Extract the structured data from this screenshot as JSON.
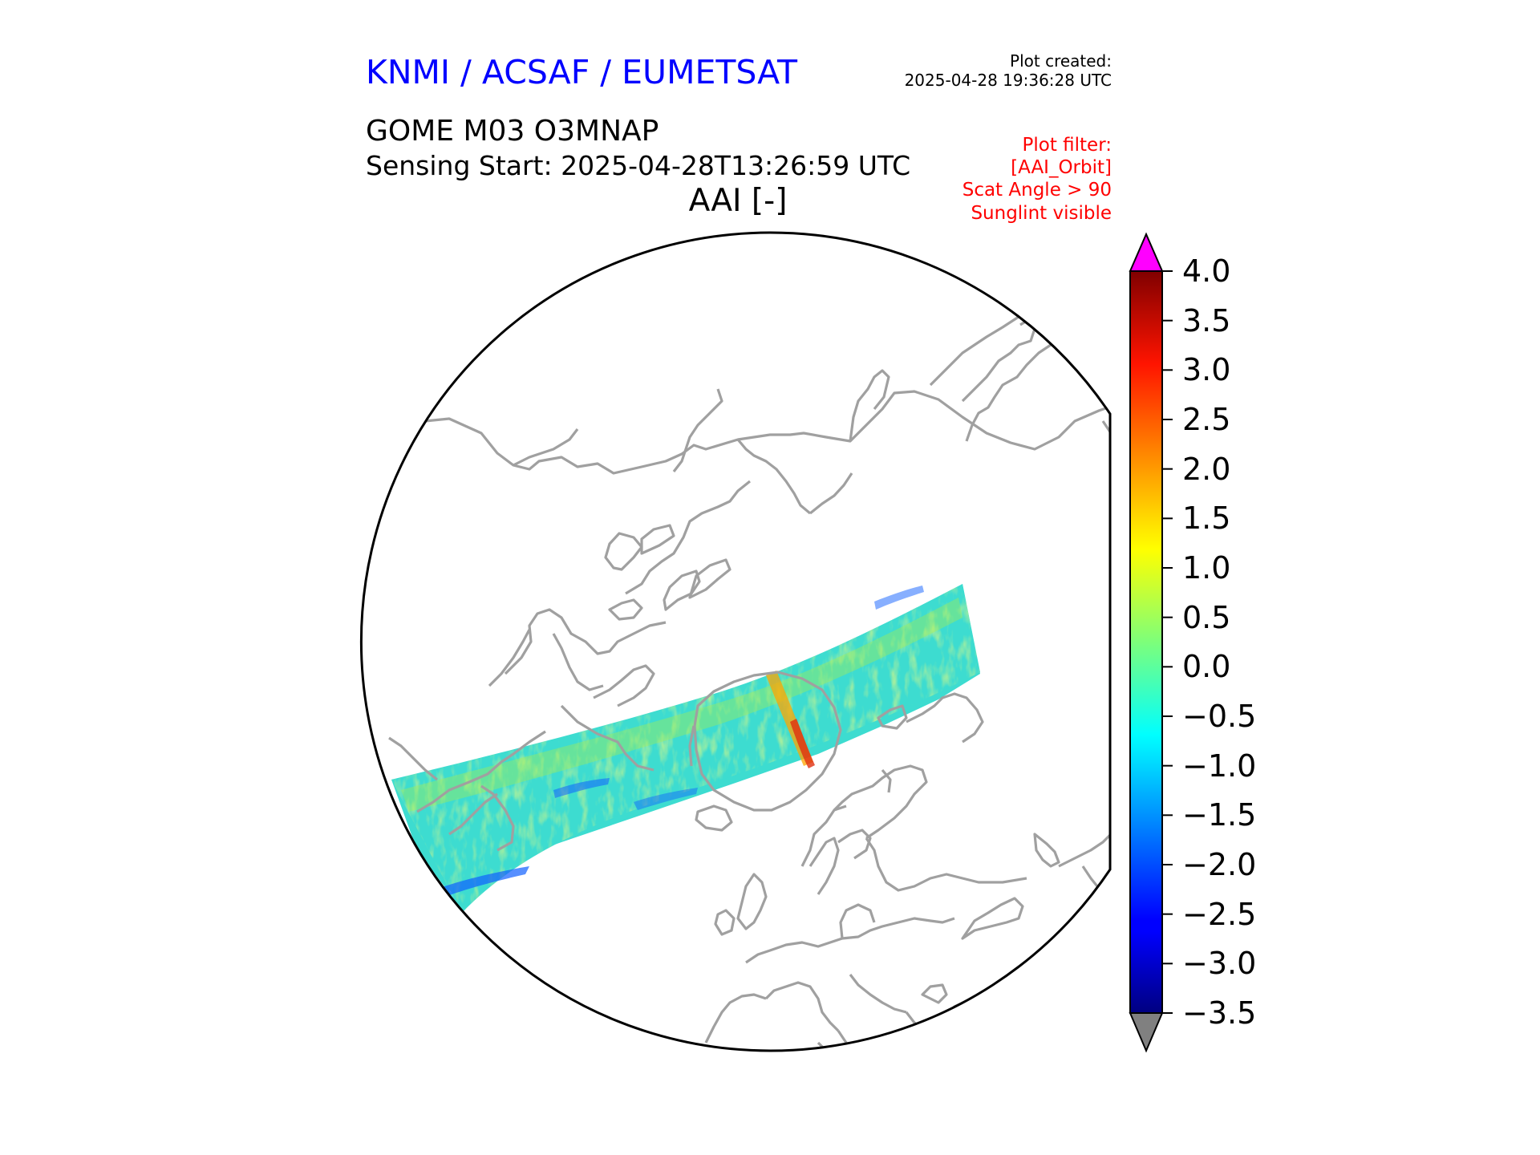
{
  "header": {
    "agency": "KNMI / ACSAF / EUMETSAT",
    "created_label": "Plot created:",
    "created_time": "2025-04-28 19:36:28 UTC",
    "product": "GOME M03 O3MNAP",
    "sensing_start": "Sensing Start: 2025-04-28T13:26:59 UTC",
    "variable_title": "AAI [-]",
    "filters": [
      "Plot filter:",
      "[AAI_Orbit]",
      "Scat Angle > 90",
      "Sunglint visible"
    ]
  },
  "map": {
    "projection": "north polar stereographic",
    "boundary_color": "#000000",
    "coastline_color": "#a0a0a0",
    "swath": {
      "background_color": "#3ddcd0",
      "highlight_colors": [
        "#b4f03c",
        "#ffa500",
        "#e03010",
        "#1060ff"
      ]
    }
  },
  "colorbar": {
    "min": -3.5,
    "max": 4.0,
    "colormap": "jet",
    "extend_over_color": "#ff00ff",
    "extend_under_color": "#808080",
    "tick_labels": [
      "4.0",
      "3.5",
      "3.0",
      "2.5",
      "2.0",
      "1.5",
      "1.0",
      "0.5",
      "0.0",
      "−0.5",
      "−1.0",
      "−1.5",
      "−2.0",
      "−2.5",
      "−3.0",
      "−3.5"
    ]
  }
}
